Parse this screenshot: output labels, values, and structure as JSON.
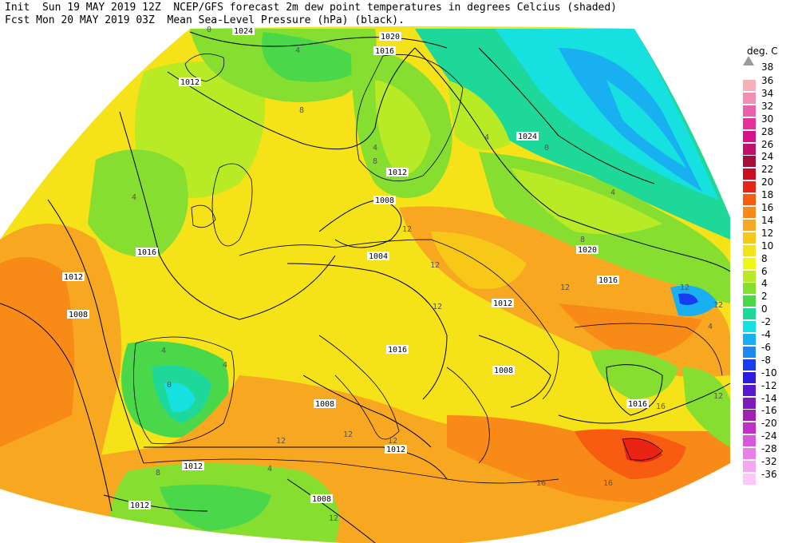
{
  "header": {
    "line1": "Init  Sun 19 MAY 2019 12Z  NCEP/GFS forecast 2m dew point temperatures in degrees Celcius (shaded)",
    "line2": "Fcst Mon 20 MAY 2019 03Z  Mean Sea-Level Pressure (hPa) (black)."
  },
  "legend": {
    "unit": "deg. C",
    "top_label": "38",
    "entries": [
      {
        "label": "36",
        "color": "#f6b0b8"
      },
      {
        "label": "34",
        "color": "#f290b4"
      },
      {
        "label": "32",
        "color": "#ec60aa"
      },
      {
        "label": "30",
        "color": "#e8309a"
      },
      {
        "label": "28",
        "color": "#d8108a"
      },
      {
        "label": "26",
        "color": "#c01070"
      },
      {
        "label": "24",
        "color": "#a80c3c"
      },
      {
        "label": "22",
        "color": "#cc0c20"
      },
      {
        "label": "20",
        "color": "#ea2414"
      },
      {
        "label": "18",
        "color": "#f85c10"
      },
      {
        "label": "16",
        "color": "#f88a18"
      },
      {
        "label": "14",
        "color": "#f8a820"
      },
      {
        "label": "12",
        "color": "#f8c818"
      },
      {
        "label": "10",
        "color": "#f6e218"
      },
      {
        "label": "8",
        "color": "#eef814"
      },
      {
        "label": "6",
        "color": "#b8ea26"
      },
      {
        "label": "4",
        "color": "#86de30"
      },
      {
        "label": "2",
        "color": "#4ad84a"
      },
      {
        "label": "0",
        "color": "#1ed89a"
      },
      {
        "label": "-2",
        "color": "#16e0e0"
      },
      {
        "label": "-4",
        "color": "#18b0f0"
      },
      {
        "label": "-6",
        "color": "#1c88f0"
      },
      {
        "label": "-8",
        "color": "#1a3cf0"
      },
      {
        "label": "-10",
        "color": "#2c1ce0"
      },
      {
        "label": "-12",
        "color": "#5818d0"
      },
      {
        "label": "-14",
        "color": "#7c1cbc"
      },
      {
        "label": "-16",
        "color": "#a020b0"
      },
      {
        "label": "-20",
        "color": "#c030c8"
      },
      {
        "label": "-24",
        "color": "#d858e0"
      },
      {
        "label": "-28",
        "color": "#e880e8"
      },
      {
        "label": "-32",
        "color": "#f4a8f4"
      },
      {
        "label": "-36",
        "color": "#fcc8fc"
      }
    ]
  },
  "map_labels": {
    "isobars": [
      "1024",
      "1020",
      "1016",
      "1012",
      "1012",
      "1008",
      "1016",
      "1012",
      "1008",
      "1004",
      "1024",
      "1020",
      "1016",
      "1016",
      "1008",
      "1008",
      "1016",
      "1012",
      "1012",
      "1008",
      "1012",
      "1012"
    ],
    "dewpoints": [
      "4",
      "8",
      "4",
      "4",
      "8",
      "4",
      "12",
      "12",
      "12",
      "12",
      "12",
      "0",
      "4",
      "8",
      "12",
      "12",
      "12",
      "12",
      "16",
      "16",
      "16",
      "4",
      "0",
      "0",
      "4",
      "8",
      "4",
      "12",
      "4",
      "12"
    ]
  }
}
